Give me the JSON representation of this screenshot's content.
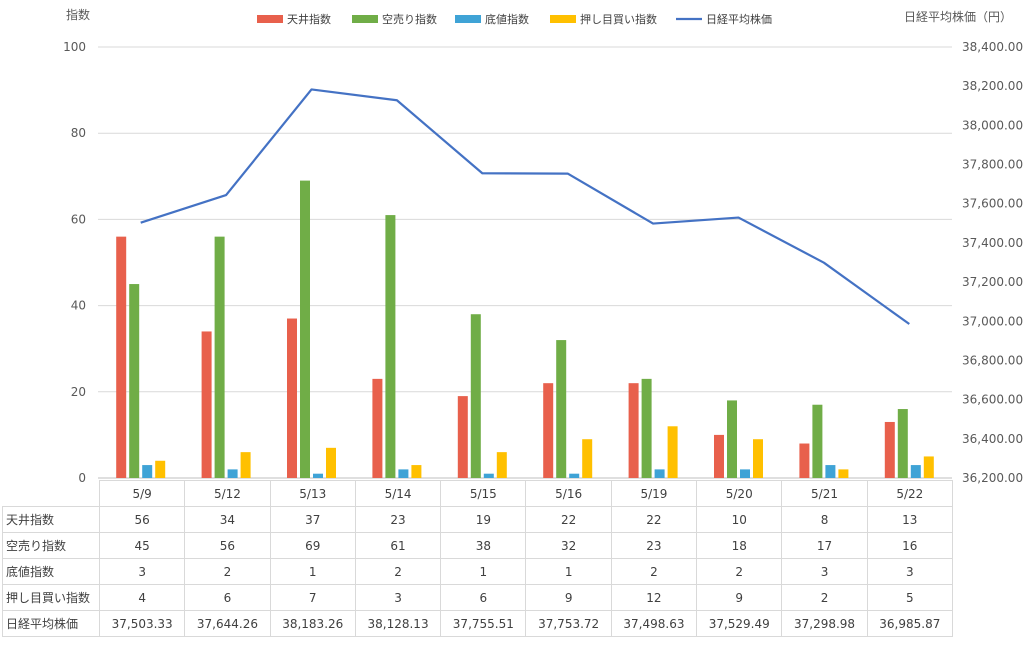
{
  "chart_data": {
    "type": "bar",
    "categories": [
      "5/9",
      "5/12",
      "5/13",
      "5/14",
      "5/15",
      "5/16",
      "5/19",
      "5/20",
      "5/21",
      "5/22"
    ],
    "series": [
      {
        "name": "天井指数",
        "type": "bar",
        "axis": "left",
        "color": "#E8604C",
        "values": [
          56,
          34,
          37,
          23,
          19,
          22,
          22,
          10,
          8,
          13
        ]
      },
      {
        "name": "空売り指数",
        "type": "bar",
        "axis": "left",
        "color": "#70AD47",
        "values": [
          45,
          56,
          69,
          61,
          38,
          32,
          23,
          18,
          17,
          16
        ]
      },
      {
        "name": "底値指数",
        "type": "bar",
        "axis": "left",
        "color": "#3FA3D6",
        "values": [
          3,
          2,
          1,
          2,
          1,
          1,
          2,
          2,
          3,
          3
        ]
      },
      {
        "name": "押し目買い指数",
        "type": "bar",
        "axis": "left",
        "color": "#FFC000",
        "values": [
          4,
          6,
          7,
          3,
          6,
          9,
          12,
          9,
          2,
          5
        ]
      },
      {
        "name": "日経平均株価",
        "type": "line",
        "axis": "right",
        "color": "#4472C4",
        "values": [
          37503.33,
          37644.26,
          38183.26,
          38128.13,
          37755.51,
          37753.72,
          37498.63,
          37529.49,
          37298.98,
          36985.87
        ]
      }
    ],
    "table_values": [
      [
        "56",
        "34",
        "37",
        "23",
        "19",
        "22",
        "22",
        "10",
        "8",
        "13"
      ],
      [
        "45",
        "56",
        "69",
        "61",
        "38",
        "32",
        "23",
        "18",
        "17",
        "16"
      ],
      [
        "3",
        "2",
        "1",
        "2",
        "1",
        "1",
        "2",
        "2",
        "3",
        "3"
      ],
      [
        "4",
        "6",
        "7",
        "3",
        "6",
        "9",
        "12",
        "9",
        "2",
        "5"
      ],
      [
        "37,503.33",
        "37,644.26",
        "38,183.26",
        "38,128.13",
        "37,755.51",
        "37,753.72",
        "37,498.63",
        "37,529.49",
        "37,298.98",
        "36,985.87"
      ]
    ],
    "ylabel": "指数",
    "y2label": "日経平均株価（円）",
    "ylim": [
      0,
      100
    ],
    "yticks": [
      0,
      20,
      40,
      60,
      80,
      100
    ],
    "y2lim": [
      36200,
      38400
    ],
    "y2ticks": [
      "36,200.00",
      "36,400.00",
      "36,600.00",
      "36,800.00",
      "37,000.00",
      "37,200.00",
      "37,400.00",
      "37,600.00",
      "37,800.00",
      "38,000.00",
      "38,200.00",
      "38,400.00"
    ],
    "grid": true,
    "legend": "top-center",
    "data_table": true
  }
}
